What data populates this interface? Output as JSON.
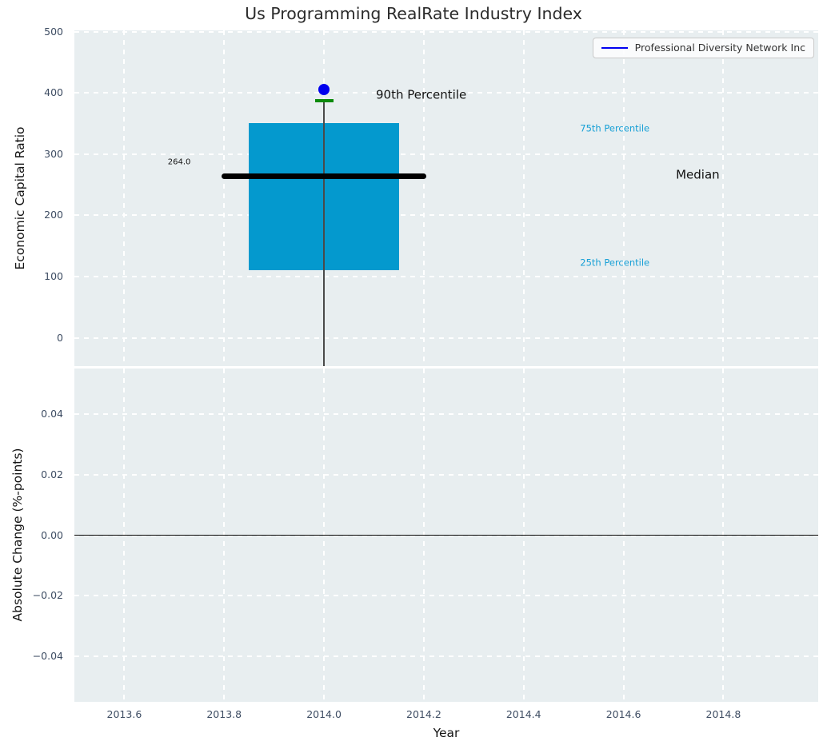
{
  "figure": {
    "title": "Us Programming RealRate Industry Index"
  },
  "style": {
    "plot_bg": "#e8eef0",
    "grid_color": "#ffffff",
    "tick_color": "#3e4d63",
    "label_color": "#141414",
    "title_color": "#2b2b2b"
  },
  "chart_data": [
    {
      "type": "boxplot",
      "title": "Us Programming RealRate Industry Index",
      "ylabel": "Economic Capital Ratio",
      "xlim": [
        2013.5,
        2014.99
      ],
      "ylim": [
        -46,
        502
      ],
      "yticks": [
        0,
        100,
        200,
        300,
        400,
        500
      ],
      "ytick_labels": [
        "0",
        "100",
        "200",
        "300",
        "400",
        "500"
      ],
      "xticks": [
        2013.6,
        2013.8,
        2014.0,
        2014.2,
        2014.4,
        2014.6,
        2014.8
      ],
      "xtick_labels_visible": false,
      "grid": true,
      "legend_position": "upper right",
      "boxes": [
        {
          "x": 2014.0,
          "q1": 110,
          "median": 264,
          "q3": 350,
          "p90": 387.5,
          "whisker_low_clipped_at": -46,
          "median_label": "264.0",
          "box_half_width": 0.151,
          "median_half_width": 0.205,
          "cap_half_width": 0.0185,
          "box_color": "#0499ce",
          "median_color": "#000000",
          "cap_color": "#0b8a0b",
          "whisker_color": "#4a4a4a"
        }
      ],
      "series": [
        {
          "name": "Professional Diversity Network Inc",
          "color": "#0000ee",
          "marker": "circle",
          "x": [
            2014.0
          ],
          "y": [
            405
          ]
        }
      ],
      "annotations": [
        {
          "text": "264.0",
          "x": 2013.71,
          "y": 287,
          "color": "#111111",
          "size": 10,
          "anchor": "middle"
        },
        {
          "text": "90th Percentile",
          "x": 2014.104,
          "y": 396,
          "color": "#111111",
          "size": 15,
          "anchor": "start"
        },
        {
          "text": "75th Percentile",
          "x": 2014.513,
          "y": 342,
          "color": "#18a0d6",
          "size": 11.5,
          "anchor": "start"
        },
        {
          "text": "Median",
          "x": 2014.705,
          "y": 266,
          "color": "#111111",
          "size": 15,
          "anchor": "start"
        },
        {
          "text": "25th Percentile",
          "x": 2014.513,
          "y": 122,
          "color": "#18a0d6",
          "size": 11.5,
          "anchor": "start"
        }
      ]
    },
    {
      "type": "line",
      "ylabel": "Absolute Change (%-points)",
      "xlabel": "Year",
      "xlim": [
        2013.5,
        2014.99
      ],
      "ylim": [
        -0.0551,
        0.0551
      ],
      "yticks": [
        0.04,
        0.02,
        0.0,
        -0.02,
        -0.04
      ],
      "ytick_labels": [
        "0.04",
        "0.02",
        "0.00",
        "−0.02",
        "−0.04"
      ],
      "xticks": [
        2013.6,
        2013.8,
        2014.0,
        2014.2,
        2014.4,
        2014.6,
        2014.8
      ],
      "xtick_labels": [
        "2013.6",
        "2013.8",
        "2014.0",
        "2014.2",
        "2014.4",
        "2014.6",
        "2014.8"
      ],
      "grid": true,
      "zero_line": {
        "y": 0.0,
        "color": "#000000"
      },
      "series": []
    }
  ]
}
